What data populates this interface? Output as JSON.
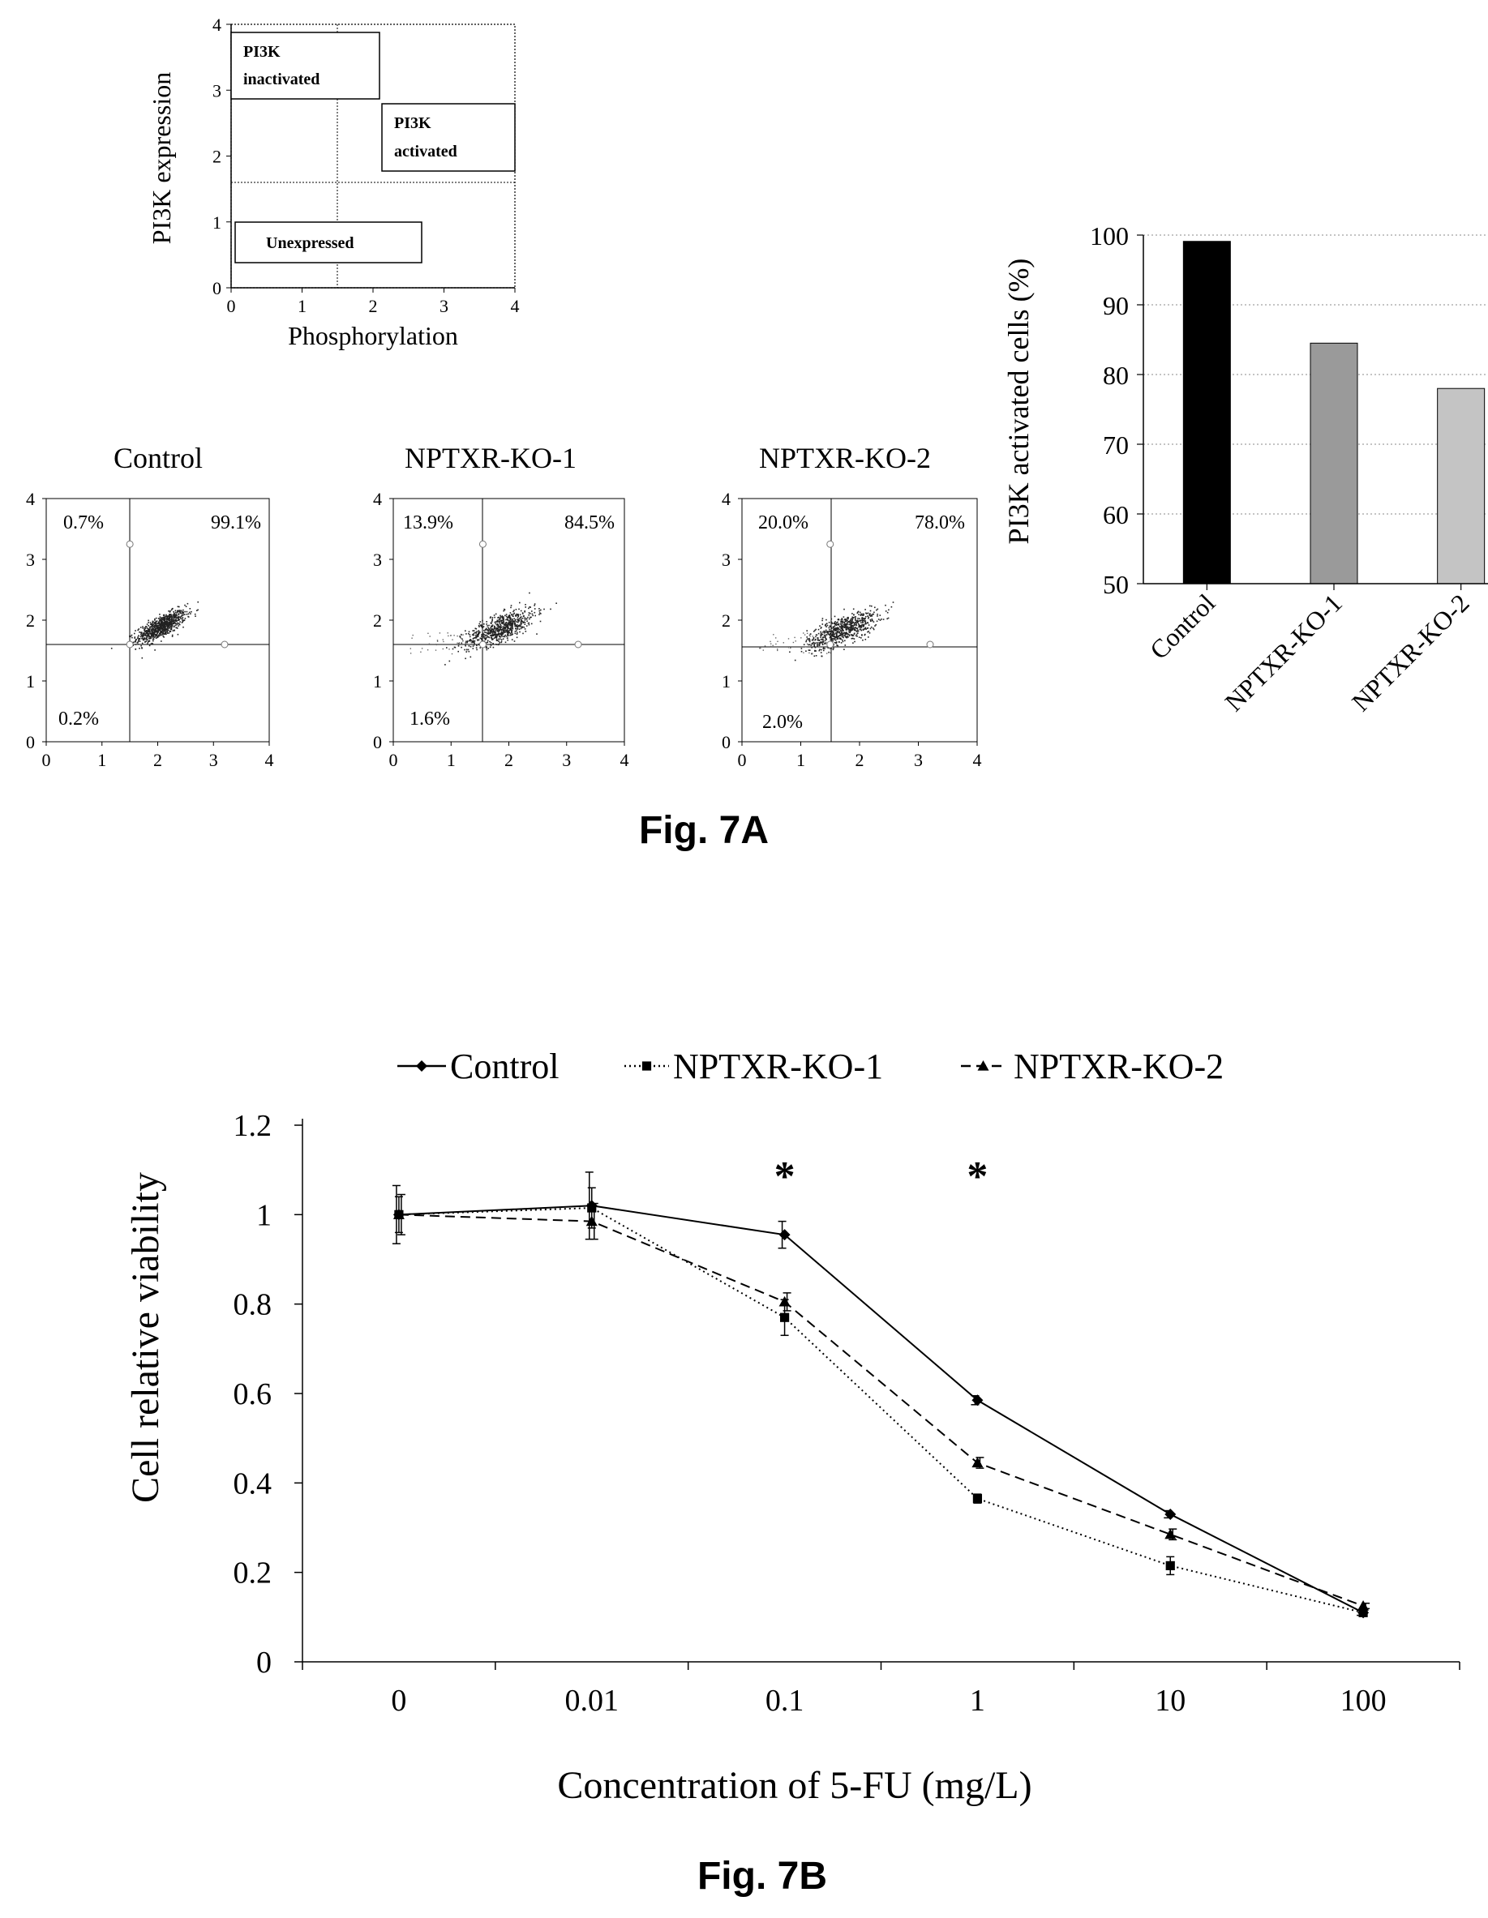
{
  "figure_labels": {
    "fig_a": "Fig. 7A",
    "fig_b": "Fig. 7B"
  },
  "chart_data": [
    {
      "type": "scatter",
      "role": "schematic",
      "xlabel": "Phosphorylation",
      "ylabel": "PI3K expression",
      "xlim": [
        0,
        4
      ],
      "ylim": [
        0,
        4
      ],
      "ticks": [
        "0",
        "1",
        "2",
        "3",
        "4"
      ],
      "gate": {
        "x": 1.5,
        "y": 1.6
      },
      "regions": [
        {
          "lines": [
            "PI3K",
            "inactivated"
          ]
        },
        {
          "lines": [
            "PI3K",
            "activated"
          ]
        },
        {
          "lines": [
            "Unexpressed"
          ]
        }
      ]
    },
    {
      "type": "scatter",
      "title": "Control",
      "xlim": [
        0,
        4
      ],
      "ylim": [
        0,
        4
      ],
      "ticks": [
        "0",
        "1",
        "2",
        "3",
        "4"
      ],
      "gate": {
        "x": 1.5,
        "y": 1.6
      },
      "quadrants": {
        "upper_left": "0.7%",
        "upper_right": "99.1%",
        "lower_left": "0.2%"
      },
      "cluster": {
        "cx": 2.05,
        "cy": 1.9,
        "sx": 0.22,
        "sy": 0.13,
        "rho": 0.75,
        "n": 850,
        "tail": false
      }
    },
    {
      "type": "scatter",
      "title": "NPTXR-KO-1",
      "xlim": [
        0,
        4
      ],
      "ylim": [
        0,
        4
      ],
      "ticks": [
        "0",
        "1",
        "2",
        "3",
        "4"
      ],
      "gate": {
        "x": 1.55,
        "y": 1.6
      },
      "quadrants": {
        "upper_left": "13.9%",
        "upper_right": "84.5%",
        "lower_left": "1.6%"
      },
      "cluster": {
        "cx": 1.85,
        "cy": 1.88,
        "sx": 0.3,
        "sy": 0.16,
        "rho": 0.7,
        "n": 700,
        "tail": true
      }
    },
    {
      "type": "scatter",
      "title": "NPTXR-KO-2",
      "xlim": [
        0,
        4
      ],
      "ylim": [
        0,
        4
      ],
      "ticks": [
        "0",
        "1",
        "2",
        "3",
        "4"
      ],
      "gate": {
        "x": 1.5,
        "y": 1.6
      },
      "quadrants": {
        "upper_left": "20.0%",
        "upper_right": "78.0%",
        "lower_left": "2.0%"
      },
      "cluster": {
        "cx": 1.7,
        "cy": 1.85,
        "sx": 0.3,
        "sy": 0.16,
        "rho": 0.7,
        "n": 700,
        "tail": true
      }
    },
    {
      "type": "bar",
      "ylabel": "PI3K activated cells (%)",
      "ylim": [
        50,
        100
      ],
      "yticks": [
        "50",
        "60",
        "70",
        "80",
        "90",
        "100"
      ],
      "grid": true,
      "categories": [
        "Control",
        "NPTXR-KO-1",
        "NPTXR-KO-2"
      ],
      "values": [
        99.1,
        84.5,
        78.0
      ],
      "colors": [
        "#000000",
        "#9a9a9a",
        "#c4c4c4"
      ]
    },
    {
      "type": "line",
      "xlabel": "Concentration of 5-FU (mg/L)",
      "ylabel": "Cell relative viability",
      "categories": [
        "0",
        "0.01",
        "0.1",
        "1",
        "10",
        "100"
      ],
      "ylim": [
        0,
        1.2
      ],
      "yticks": [
        "0",
        "0.2",
        "0.4",
        "0.6",
        "0.8",
        "1",
        "1.2"
      ],
      "legend_position": "top-center",
      "annotations": [
        {
          "text": "*",
          "category": "0.1"
        },
        {
          "text": "*",
          "category": "1"
        }
      ],
      "series": [
        {
          "name": "Control",
          "style": "solid",
          "marker": "diamond",
          "values": [
            1.0,
            1.02,
            0.955,
            0.585,
            0.33,
            0.11
          ],
          "errors": [
            0.065,
            0.075,
            0.03,
            0.01,
            0.008,
            0.006
          ]
        },
        {
          "name": "NPTXR-KO-1",
          "style": "dotted",
          "marker": "square",
          "values": [
            1.0,
            1.015,
            0.77,
            0.365,
            0.215,
            0.11
          ],
          "errors": [
            0.04,
            0.045,
            0.04,
            0.01,
            0.02,
            0.008
          ]
        },
        {
          "name": "NPTXR-KO-2",
          "style": "dashed",
          "marker": "triangle",
          "values": [
            1.0,
            0.985,
            0.805,
            0.445,
            0.285,
            0.125
          ],
          "errors": [
            0.045,
            0.04,
            0.02,
            0.012,
            0.012,
            0.006
          ]
        }
      ]
    }
  ]
}
